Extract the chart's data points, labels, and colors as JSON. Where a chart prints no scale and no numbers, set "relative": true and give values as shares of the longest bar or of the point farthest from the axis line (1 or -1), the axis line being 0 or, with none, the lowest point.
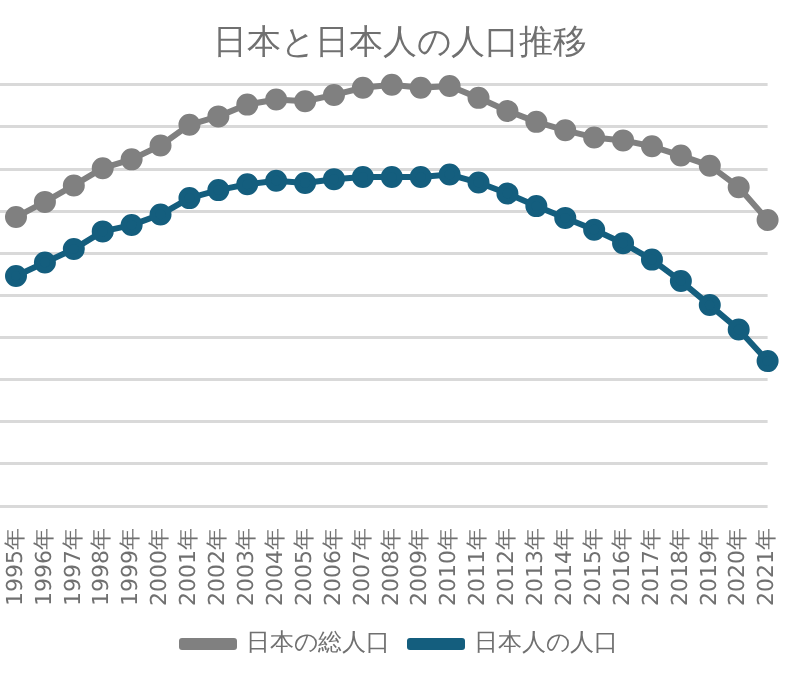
{
  "chart_data": {
    "type": "line",
    "title": "日本と日本人の人口推移",
    "relative": true,
    "grid": "y",
    "legend": "bottom",
    "marker": "circle",
    "line_style": "solid",
    "categories": [
      "1995年",
      "1996年",
      "1997年",
      "1998年",
      "1999年",
      "2000年",
      "2001年",
      "2002年",
      "2003年",
      "2004年",
      "2005年",
      "2006年",
      "2007年",
      "2008年",
      "2009年",
      "2010年",
      "2011年",
      "2012年",
      "2013年",
      "2014年",
      "2015年",
      "2016年",
      "2017年",
      "2018年",
      "2019年",
      "2020年",
      "2021年"
    ],
    "series": [
      {
        "name": "日本の総人口",
        "color": "#808080",
        "values": [
          0.686,
          0.722,
          0.761,
          0.802,
          0.823,
          0.856,
          0.905,
          0.925,
          0.953,
          0.965,
          0.961,
          0.976,
          0.993,
          1,
          0.993,
          0.997,
          0.969,
          0.938,
          0.912,
          0.892,
          0.875,
          0.868,
          0.854,
          0.832,
          0.808,
          0.757,
          0.679
        ]
      },
      {
        "name": "日本人の人口",
        "color": "#145e7e",
        "values": [
          0.546,
          0.578,
          0.61,
          0.652,
          0.667,
          0.692,
          0.731,
          0.75,
          0.764,
          0.772,
          0.767,
          0.776,
          0.781,
          0.781,
          0.781,
          0.787,
          0.768,
          0.742,
          0.712,
          0.684,
          0.656,
          0.624,
          0.585,
          0.534,
          0.477,
          0.419,
          0.344
        ]
      }
    ]
  }
}
